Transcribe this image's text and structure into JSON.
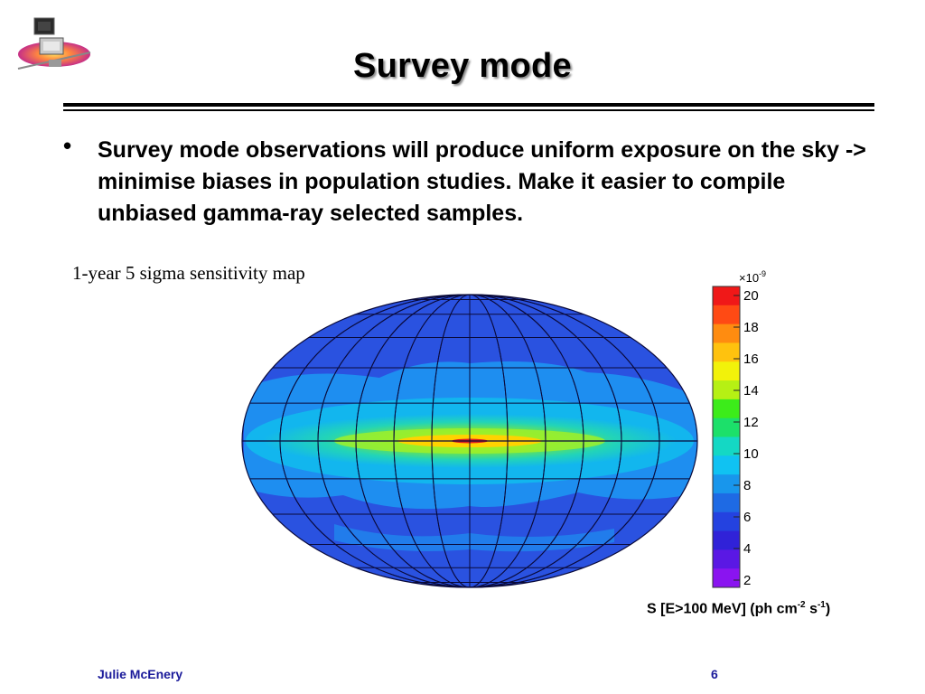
{
  "slide": {
    "title": "Survey mode",
    "bullet_symbol": "•",
    "bullet_text": "Survey mode observations will produce uniform exposure on the sky -> minimise biases in population studies. Make it easier to compile unbiased gamma-ray selected samples.",
    "map_caption": "1-year 5 sigma sensitivity map"
  },
  "colorbar": {
    "multiplier": "×10",
    "multiplier_exponent": "-9",
    "ticks": [
      "20",
      "18",
      "16",
      "14",
      "12",
      "10",
      "8",
      "6",
      "4",
      "2"
    ],
    "unit_prefix": "S [E>100 MeV] (ph cm",
    "unit_exp1": "-2",
    "unit_mid": " s",
    "unit_exp2": "-1",
    "unit_suffix": ")"
  },
  "footer": {
    "author": "Julie McEnery",
    "page_number": "6"
  },
  "colors": {
    "footer_text": "#1a1a9a",
    "map_background": "#2a52e0",
    "galactic_plane": "#ffd300"
  }
}
